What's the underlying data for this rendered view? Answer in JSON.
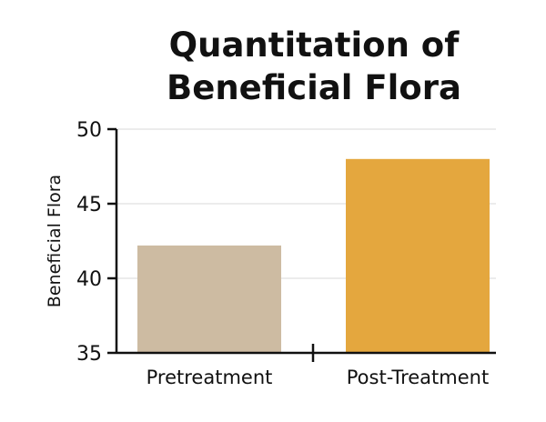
{
  "chart_data": {
    "type": "bar",
    "title": [
      "Quantitation of",
      "Beneficial Flora"
    ],
    "xlabel": "",
    "ylabel": "Beneficial Flora",
    "categories": [
      "Pretreatment",
      "Post-Treatment"
    ],
    "values": [
      42.2,
      48.0
    ],
    "colors": [
      "#cdbba2",
      "#e4a73e"
    ],
    "ylim": [
      35,
      50
    ],
    "yticks": [
      35,
      40,
      45,
      50
    ],
    "grid": true,
    "gridColor": "#d9d9d9",
    "axisColor": "#111111"
  }
}
